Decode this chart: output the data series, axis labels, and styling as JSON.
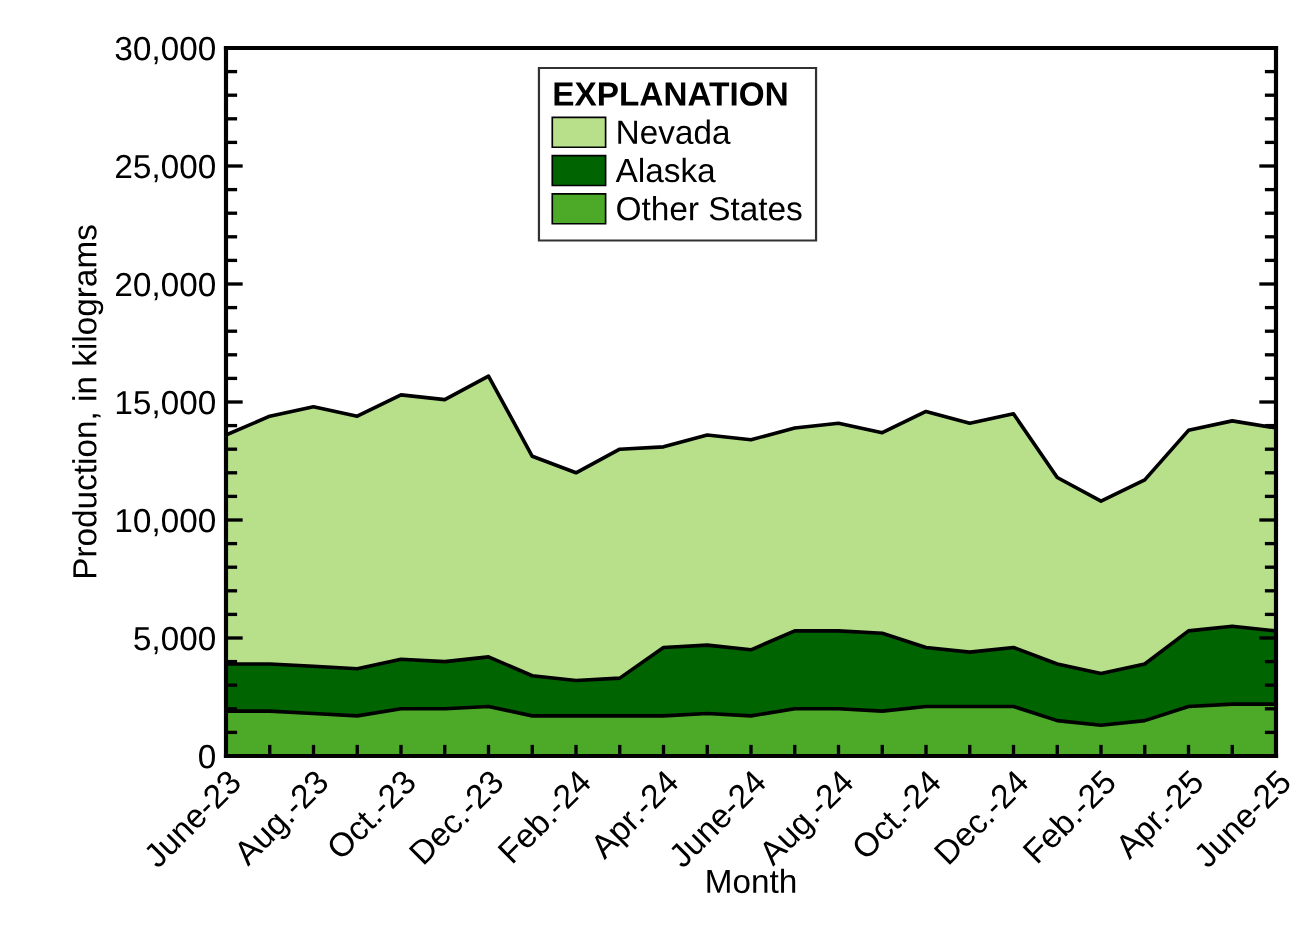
{
  "chart_data": {
    "type": "area",
    "stacked": true,
    "xlabel": "Month",
    "ylabel": "Production, in kilograms",
    "legend_title": "EXPLANATION",
    "legend": "top",
    "categories": [
      "June-23",
      null,
      "Aug.-23",
      null,
      "Oct.-23",
      null,
      "Dec.-23",
      null,
      "Feb.-24",
      null,
      "Apr.-24",
      null,
      "June-24",
      null,
      "Aug.-24",
      null,
      "Oct.-24",
      null,
      "Dec.-24",
      null,
      "Feb.-25",
      null,
      "Apr.-25",
      null,
      "June-25"
    ],
    "series": [
      {
        "name": "Other States",
        "color": "#4caa28",
        "values": [
          1900,
          1900,
          1800,
          1700,
          2000,
          2000,
          2100,
          1700,
          1700,
          1700,
          1700,
          1800,
          1700,
          2000,
          2000,
          1900,
          2100,
          2100,
          2100,
          1500,
          1300,
          1500,
          2100,
          2200,
          2200
        ]
      },
      {
        "name": "Alaska",
        "color": "#006400",
        "values": [
          2000,
          2000,
          2000,
          2000,
          2100,
          2000,
          2100,
          1700,
          1500,
          1600,
          2900,
          2900,
          2800,
          3300,
          3300,
          3300,
          2500,
          2300,
          2500,
          2400,
          2200,
          2400,
          3200,
          3300,
          3100
        ]
      },
      {
        "name": "Nevada",
        "color": "#b8e08a",
        "values": [
          9700,
          10500,
          11000,
          10700,
          11200,
          11100,
          11900,
          9300,
          8800,
          9700,
          8500,
          8900,
          8900,
          8600,
          8800,
          8500,
          10000,
          9700,
          9900,
          7900,
          7300,
          7800,
          8500,
          8700,
          8600
        ]
      }
    ],
    "ylim": [
      0,
      30000
    ],
    "yticks": [
      {
        "value": 0,
        "label": "0"
      },
      {
        "value": 1000,
        "label": null
      },
      {
        "value": 2000,
        "label": null
      },
      {
        "value": 3000,
        "label": null
      },
      {
        "value": 4000,
        "label": null
      },
      {
        "value": 5000,
        "label": "5,000"
      },
      {
        "value": 6000,
        "label": null
      },
      {
        "value": 7000,
        "label": null
      },
      {
        "value": 8000,
        "label": null
      },
      {
        "value": 9000,
        "label": null
      },
      {
        "value": 10000,
        "label": "10,000"
      },
      {
        "value": 11000,
        "label": null
      },
      {
        "value": 12000,
        "label": null
      },
      {
        "value": 13000,
        "label": null
      },
      {
        "value": 14000,
        "label": null
      },
      {
        "value": 15000,
        "label": "15,000"
      },
      {
        "value": 16000,
        "label": null
      },
      {
        "value": 17000,
        "label": null
      },
      {
        "value": 18000,
        "label": null
      },
      {
        "value": 19000,
        "label": null
      },
      {
        "value": 20000,
        "label": "20,000"
      },
      {
        "value": 21000,
        "label": null
      },
      {
        "value": 22000,
        "label": null
      },
      {
        "value": 23000,
        "label": null
      },
      {
        "value": 24000,
        "label": null
      },
      {
        "value": 25000,
        "label": "25,000"
      },
      {
        "value": 26000,
        "label": null
      },
      {
        "value": 27000,
        "label": null
      },
      {
        "value": 28000,
        "label": null
      },
      {
        "value": 29000,
        "label": null
      },
      {
        "value": 30000,
        "label": "30,000"
      }
    ]
  }
}
